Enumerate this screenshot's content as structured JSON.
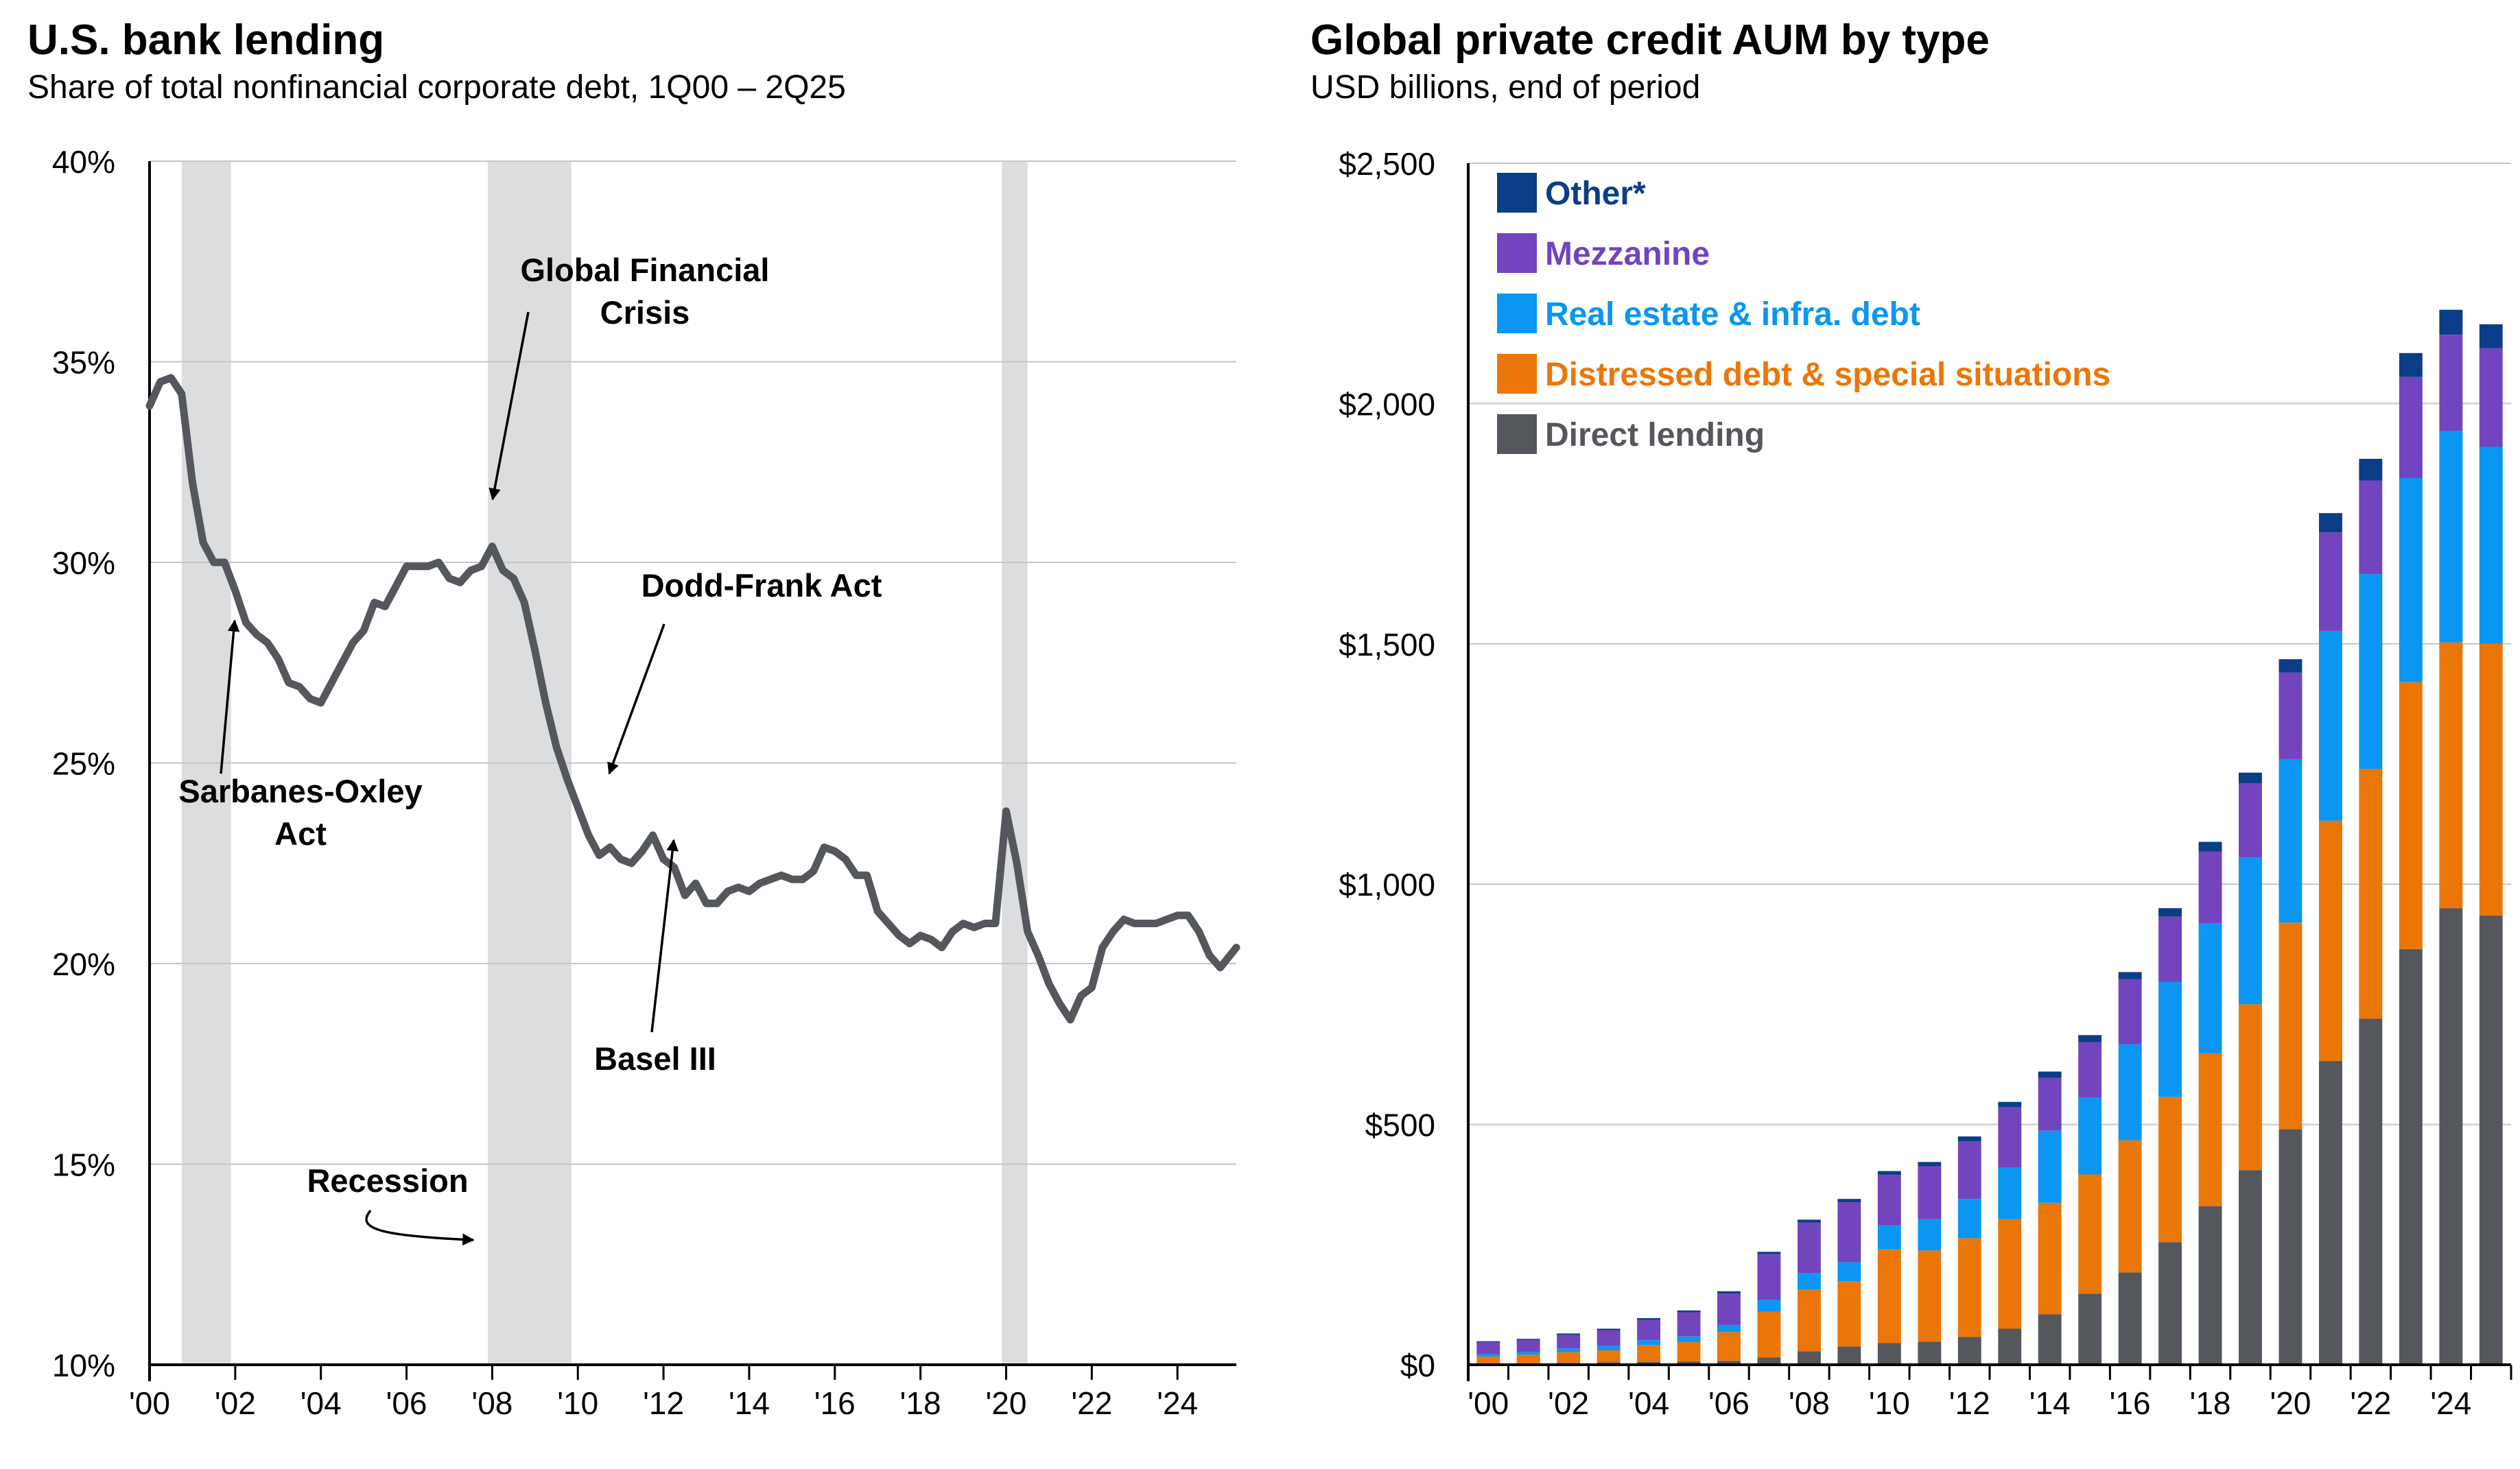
{
  "chart_data": [
    {
      "type": "line",
      "title": "U.S. bank lending",
      "subtitle": "Share of total nonfinancial corporate debt, 1Q00 – 2Q25",
      "xlabel": "",
      "ylabel": "",
      "xlim": [
        2000.0,
        2025.375
      ],
      "ylim": [
        10,
        40
      ],
      "x_ticks": [
        {
          "value": 2000,
          "label": "'00"
        },
        {
          "value": 2002,
          "label": "'02"
        },
        {
          "value": 2004,
          "label": "'04"
        },
        {
          "value": 2006,
          "label": "'06"
        },
        {
          "value": 2008,
          "label": "'08"
        },
        {
          "value": 2010,
          "label": "'10"
        },
        {
          "value": 2012,
          "label": "'12"
        },
        {
          "value": 2014,
          "label": "'14"
        },
        {
          "value": 2016,
          "label": "'16"
        },
        {
          "value": 2018,
          "label": "'18"
        },
        {
          "value": 2020,
          "label": "'20"
        },
        {
          "value": 2022,
          "label": "'22"
        },
        {
          "value": 2024,
          "label": "'24"
        }
      ],
      "y_ticks": [
        {
          "value": 10,
          "label": "10%"
        },
        {
          "value": 15,
          "label": "15%"
        },
        {
          "value": 20,
          "label": "20%"
        },
        {
          "value": 25,
          "label": "25%"
        },
        {
          "value": 30,
          "label": "30%"
        },
        {
          "value": 35,
          "label": "35%"
        },
        {
          "value": 40,
          "label": "40%"
        }
      ],
      "grid": "horizontal",
      "recessions": [
        {
          "start": 2000.75,
          "end": 2001.9
        },
        {
          "start": 2007.9,
          "end": 2009.85
        },
        {
          "start": 2019.9,
          "end": 2020.5
        }
      ],
      "series": [
        {
          "color": "#54575c",
          "points": [
            [
              2000.0,
              33.9
            ],
            [
              2000.25,
              34.5
            ],
            [
              2000.5,
              34.6
            ],
            [
              2000.75,
              34.2
            ],
            [
              2001.0,
              32.0
            ],
            [
              2001.25,
              30.5
            ],
            [
              2001.5,
              30.0
            ],
            [
              2001.75,
              30.0
            ],
            [
              2002.0,
              29.3
            ],
            [
              2002.25,
              28.5
            ],
            [
              2002.5,
              28.2
            ],
            [
              2002.75,
              28.0
            ],
            [
              2003.0,
              27.6
            ],
            [
              2003.25,
              27.0
            ],
            [
              2003.5,
              26.9
            ],
            [
              2003.75,
              26.6
            ],
            [
              2004.0,
              26.5
            ],
            [
              2004.25,
              27.0
            ],
            [
              2004.5,
              27.5
            ],
            [
              2004.75,
              28.0
            ],
            [
              2005.0,
              28.3
            ],
            [
              2005.25,
              29.0
            ],
            [
              2005.5,
              28.9
            ],
            [
              2005.75,
              29.4
            ],
            [
              2006.0,
              29.9
            ],
            [
              2006.25,
              29.9
            ],
            [
              2006.5,
              29.9
            ],
            [
              2006.75,
              30.0
            ],
            [
              2007.0,
              29.6
            ],
            [
              2007.25,
              29.5
            ],
            [
              2007.5,
              29.8
            ],
            [
              2007.75,
              29.9
            ],
            [
              2008.0,
              30.4
            ],
            [
              2008.25,
              29.8
            ],
            [
              2008.5,
              29.6
            ],
            [
              2008.75,
              29.0
            ],
            [
              2009.0,
              27.8
            ],
            [
              2009.25,
              26.5
            ],
            [
              2009.5,
              25.4
            ],
            [
              2009.75,
              24.6
            ],
            [
              2010.0,
              23.9
            ],
            [
              2010.25,
              23.2
            ],
            [
              2010.5,
              22.7
            ],
            [
              2010.75,
              22.9
            ],
            [
              2011.0,
              22.6
            ],
            [
              2011.25,
              22.5
            ],
            [
              2011.5,
              22.8
            ],
            [
              2011.75,
              23.2
            ],
            [
              2012.0,
              22.6
            ],
            [
              2012.25,
              22.4
            ],
            [
              2012.5,
              21.7
            ],
            [
              2012.75,
              22.0
            ],
            [
              2013.0,
              21.5
            ],
            [
              2013.25,
              21.5
            ],
            [
              2013.5,
              21.8
            ],
            [
              2013.75,
              21.9
            ],
            [
              2014.0,
              21.8
            ],
            [
              2014.25,
              22.0
            ],
            [
              2014.5,
              22.1
            ],
            [
              2014.75,
              22.2
            ],
            [
              2015.0,
              22.1
            ],
            [
              2015.25,
              22.1
            ],
            [
              2015.5,
              22.3
            ],
            [
              2015.75,
              22.9
            ],
            [
              2016.0,
              22.8
            ],
            [
              2016.25,
              22.6
            ],
            [
              2016.5,
              22.2
            ],
            [
              2016.75,
              22.2
            ],
            [
              2017.0,
              21.3
            ],
            [
              2017.25,
              21.0
            ],
            [
              2017.5,
              20.7
            ],
            [
              2017.75,
              20.5
            ],
            [
              2018.0,
              20.7
            ],
            [
              2018.25,
              20.6
            ],
            [
              2018.5,
              20.4
            ],
            [
              2018.75,
              20.8
            ],
            [
              2019.0,
              21.0
            ],
            [
              2019.25,
              20.9
            ],
            [
              2019.5,
              21.0
            ],
            [
              2019.75,
              21.0
            ],
            [
              2020.0,
              23.8
            ],
            [
              2020.25,
              22.5
            ],
            [
              2020.5,
              20.8
            ],
            [
              2020.75,
              20.2
            ],
            [
              2021.0,
              19.5
            ],
            [
              2021.25,
              19.0
            ],
            [
              2021.5,
              18.6
            ],
            [
              2021.75,
              19.2
            ],
            [
              2022.0,
              19.4
            ],
            [
              2022.25,
              20.4
            ],
            [
              2022.5,
              20.8
            ],
            [
              2022.75,
              21.1
            ],
            [
              2023.0,
              21.0
            ],
            [
              2023.25,
              21.0
            ],
            [
              2023.5,
              21.0
            ],
            [
              2023.75,
              21.1
            ],
            [
              2024.0,
              21.2
            ],
            [
              2024.25,
              21.2
            ],
            [
              2024.5,
              20.8
            ],
            [
              2024.75,
              20.2
            ],
            [
              2025.0,
              19.9
            ],
            [
              2025.375,
              20.4
            ]
          ]
        }
      ],
      "annotations": [
        {
          "lines": [
            "Global Financial",
            "Crisis"
          ]
        },
        {
          "lines": [
            "Dodd-Frank Act"
          ]
        },
        {
          "lines": [
            "Sarbanes-Oxley",
            "Act"
          ]
        },
        {
          "lines": [
            "Basel III"
          ]
        },
        {
          "lines": [
            "Recession"
          ]
        }
      ]
    },
    {
      "type": "bar",
      "stacked": true,
      "title": "Global private credit AUM by type",
      "subtitle": "USD billions, end of period",
      "xlabel": "",
      "ylabel": "",
      "ylim": [
        0,
        2500
      ],
      "y_ticks": [
        {
          "value": 0,
          "label": "$0"
        },
        {
          "value": 500,
          "label": "$500"
        },
        {
          "value": 1000,
          "label": "$1,000"
        },
        {
          "value": 1500,
          "label": "$1,500"
        },
        {
          "value": 2000,
          "label": "$2,000"
        },
        {
          "value": 2500,
          "label": "$2,500"
        }
      ],
      "grid": "horizontal",
      "legend_position": "top-left",
      "categories": [
        "2000",
        "2001",
        "2002",
        "2003",
        "2004",
        "2005",
        "2006",
        "2007",
        "2008",
        "2009",
        "2010",
        "2011",
        "2012",
        "2013",
        "2014",
        "2015",
        "2016",
        "2017",
        "2018",
        "2019",
        "2020",
        "2021",
        "2022",
        "2023",
        "2024",
        "2025"
      ],
      "category_labels": [
        "'00",
        "",
        "'02",
        "",
        "'04",
        "",
        "'06",
        "",
        "'08",
        "",
        "'10",
        "",
        "'12",
        "",
        "'14",
        "",
        "'16",
        "",
        "'18",
        "",
        "'20",
        "",
        "'22",
        "",
        "'24",
        ""
      ],
      "series": [
        {
          "name": "Direct lending",
          "color": "#54575c",
          "values": [
            2,
            3,
            4,
            5,
            6,
            7,
            8,
            15,
            28,
            38,
            45,
            48,
            58,
            75,
            105,
            148,
            192,
            255,
            330,
            405,
            490,
            632,
            720,
            865,
            950,
            935
          ]
        },
        {
          "name": "Distressed debt & special situations",
          "color": "#eb7608",
          "values": [
            15,
            18,
            22,
            25,
            35,
            40,
            60,
            95,
            128,
            135,
            195,
            190,
            205,
            228,
            232,
            248,
            275,
            302,
            318,
            345,
            430,
            500,
            520,
            555,
            553,
            565
          ]
        },
        {
          "name": "Real estate & infra. debt",
          "color": "#0a96f2",
          "values": [
            5,
            6,
            8,
            9,
            10,
            12,
            15,
            25,
            35,
            40,
            50,
            65,
            82,
            108,
            150,
            160,
            200,
            240,
            270,
            305,
            340,
            395,
            405,
            425,
            440,
            410
          ]
        },
        {
          "name": "Mezzanine",
          "color": "#7244be",
          "values": [
            25,
            25,
            28,
            33,
            42,
            50,
            65,
            95,
            105,
            125,
            105,
            110,
            120,
            125,
            110,
            115,
            135,
            135,
            150,
            155,
            180,
            205,
            195,
            210,
            200,
            205
          ]
        },
        {
          "name": "Other*",
          "color": "#0b3e86",
          "values": [
            2,
            2,
            3,
            3,
            4,
            4,
            5,
            5,
            6,
            7,
            8,
            9,
            10,
            11,
            13,
            15,
            15,
            18,
            20,
            22,
            28,
            40,
            45,
            50,
            52,
            50
          ]
        }
      ]
    }
  ]
}
